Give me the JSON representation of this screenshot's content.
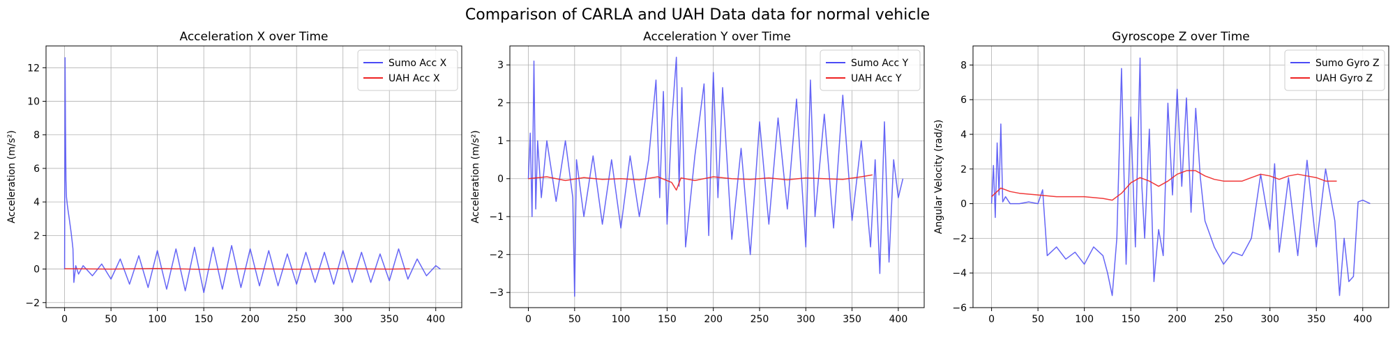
{
  "suptitle": "Comparison of CARLA and UAH Data data for normal vehicle",
  "chart_data": [
    {
      "type": "line",
      "title": "Acceleration X over Time",
      "xlabel": "",
      "ylabel": "Acceleration (m/s²)",
      "xlim": [
        -20,
        428
      ],
      "ylim": [
        -2.3,
        13.3
      ],
      "xticks": [
        0,
        50,
        100,
        150,
        200,
        250,
        300,
        350,
        400
      ],
      "yticks": [
        -2,
        0,
        2,
        4,
        6,
        8,
        10,
        12
      ],
      "grid": true,
      "legend_position": "top-right",
      "series": [
        {
          "name": "Sumo Acc X",
          "color": "#4a4af5",
          "x": [
            0,
            0.5,
            1,
            1.5,
            2,
            3,
            4,
            5,
            6,
            7,
            8,
            9,
            10,
            12,
            15,
            20,
            30,
            40,
            50,
            60,
            70,
            80,
            90,
            100,
            110,
            120,
            130,
            140,
            150,
            160,
            170,
            180,
            190,
            200,
            210,
            220,
            230,
            240,
            250,
            260,
            270,
            280,
            290,
            300,
            310,
            320,
            330,
            340,
            350,
            360,
            370,
            380,
            390,
            400,
            405
          ],
          "y": [
            0,
            12.6,
            8.5,
            5.3,
            4.3,
            3.8,
            3.4,
            3.0,
            2.6,
            2.2,
            1.7,
            1.2,
            -0.8,
            0.2,
            -0.3,
            0.2,
            -0.4,
            0.3,
            -0.6,
            0.6,
            -0.9,
            0.8,
            -1.1,
            1.1,
            -1.2,
            1.2,
            -1.3,
            1.3,
            -1.4,
            1.3,
            -1.2,
            1.4,
            -1.1,
            1.2,
            -1.0,
            1.1,
            -1.0,
            0.9,
            -0.9,
            1.0,
            -0.8,
            1.0,
            -0.9,
            1.1,
            -0.8,
            1.0,
            -0.8,
            0.9,
            -0.7,
            1.2,
            -0.6,
            0.6,
            -0.4,
            0.2,
            0
          ]
        },
        {
          "name": "UAH Acc X",
          "color": "#ee2222",
          "x": [
            0,
            50,
            100,
            150,
            200,
            250,
            300,
            350,
            372
          ],
          "y": [
            0.02,
            0.0,
            0.03,
            -0.02,
            0.02,
            -0.01,
            0.02,
            0.0,
            0.01
          ]
        }
      ]
    },
    {
      "type": "line",
      "title": "Acceleration Y over Time",
      "xlabel": "",
      "ylabel": "Acceleration (m/s²)",
      "xlim": [
        -20,
        428
      ],
      "ylim": [
        -3.4,
        3.5
      ],
      "xticks": [
        0,
        50,
        100,
        150,
        200,
        250,
        300,
        350,
        400
      ],
      "yticks": [
        -3,
        -2,
        -1,
        0,
        1,
        2,
        3
      ],
      "grid": true,
      "legend_position": "top-right",
      "series": [
        {
          "name": "Sumo Acc Y",
          "color": "#4a4af5",
          "x": [
            0,
            2,
            4,
            6,
            8,
            10,
            14,
            20,
            30,
            40,
            48,
            50,
            52,
            60,
            70,
            80,
            90,
            100,
            110,
            120,
            130,
            138,
            142,
            146,
            150,
            155,
            160,
            163,
            166,
            170,
            180,
            190,
            195,
            200,
            205,
            210,
            220,
            230,
            240,
            250,
            260,
            270,
            280,
            290,
            300,
            305,
            310,
            320,
            330,
            340,
            350,
            360,
            370,
            375,
            380,
            385,
            390,
            395,
            400,
            405
          ],
          "y": [
            0,
            1.2,
            -1.0,
            3.1,
            -0.8,
            1.0,
            -0.5,
            1.0,
            -0.6,
            1.0,
            -0.5,
            -3.1,
            0.5,
            -1.0,
            0.6,
            -1.2,
            0.5,
            -1.3,
            0.6,
            -1.0,
            0.5,
            2.6,
            -0.5,
            2.3,
            -1.2,
            1.5,
            3.2,
            -0.2,
            2.4,
            -1.8,
            0.6,
            2.5,
            -1.5,
            2.8,
            -0.5,
            2.4,
            -1.6,
            0.8,
            -2.0,
            1.5,
            -1.2,
            1.6,
            -0.8,
            2.1,
            -1.8,
            2.6,
            -1.0,
            1.7,
            -1.3,
            2.2,
            -1.1,
            1.0,
            -1.8,
            0.5,
            -2.5,
            1.5,
            -2.2,
            0.5,
            -0.5,
            0
          ]
        },
        {
          "name": "UAH Acc Y",
          "color": "#ee2222",
          "x": [
            0,
            20,
            40,
            60,
            80,
            100,
            120,
            140,
            155,
            160,
            165,
            180,
            200,
            220,
            240,
            260,
            280,
            300,
            320,
            340,
            360,
            372
          ],
          "y": [
            0.0,
            0.05,
            -0.05,
            0.03,
            -0.02,
            0.0,
            -0.03,
            0.05,
            -0.1,
            -0.3,
            0.02,
            -0.05,
            0.05,
            0.0,
            -0.02,
            0.02,
            -0.03,
            0.02,
            0.0,
            -0.02,
            0.05,
            0.1
          ]
        }
      ]
    },
    {
      "type": "line",
      "title": "Gyroscope Z over Time",
      "xlabel": "",
      "ylabel": "Angular Velocity (rad/s)",
      "xlim": [
        -20,
        428
      ],
      "ylim": [
        -6.0,
        9.1
      ],
      "xticks": [
        0,
        50,
        100,
        150,
        200,
        250,
        300,
        350,
        400
      ],
      "yticks": [
        -6,
        -4,
        -2,
        0,
        2,
        4,
        6,
        8
      ],
      "grid": true,
      "legend_position": "top-right",
      "series": [
        {
          "name": "Sumo Gyro Z",
          "color": "#4a4af5",
          "x": [
            0,
            2,
            4,
            6,
            8,
            10,
            12,
            15,
            20,
            30,
            40,
            50,
            55,
            60,
            70,
            80,
            90,
            100,
            110,
            120,
            125,
            130,
            135,
            140,
            145,
            150,
            155,
            160,
            162,
            165,
            170,
            175,
            180,
            185,
            190,
            195,
            200,
            205,
            210,
            215,
            220,
            225,
            230,
            240,
            250,
            260,
            270,
            280,
            290,
            300,
            305,
            310,
            320,
            330,
            340,
            350,
            360,
            370,
            375,
            380,
            385,
            390,
            395,
            400,
            408
          ],
          "y": [
            0,
            2.2,
            -0.8,
            3.5,
            0.5,
            4.6,
            0.1,
            0.4,
            0.0,
            0.0,
            0.1,
            0.0,
            0.8,
            -3.0,
            -2.5,
            -3.2,
            -2.8,
            -3.5,
            -2.5,
            -3.0,
            -4.0,
            -5.3,
            -2.0,
            7.8,
            -3.5,
            5.0,
            -2.5,
            8.4,
            1.0,
            -2.0,
            4.3,
            -4.5,
            -1.5,
            -3.0,
            5.8,
            0.5,
            6.6,
            1.0,
            6.1,
            -0.5,
            5.5,
            1.5,
            -1.0,
            -2.5,
            -3.5,
            -2.8,
            -3.0,
            -2.0,
            1.7,
            -1.5,
            2.3,
            -2.8,
            1.5,
            -3.0,
            2.5,
            -2.5,
            2.0,
            -1.0,
            -5.3,
            -2.0,
            -4.5,
            -4.2,
            0.1,
            0.2,
            0.0
          ]
        },
        {
          "name": "UAH Gyro Z",
          "color": "#ee2222",
          "x": [
            0,
            10,
            20,
            30,
            50,
            70,
            100,
            120,
            130,
            140,
            150,
            160,
            170,
            180,
            190,
            200,
            210,
            220,
            230,
            240,
            250,
            270,
            280,
            290,
            300,
            310,
            320,
            330,
            340,
            350,
            360,
            372
          ],
          "y": [
            0.4,
            0.9,
            0.7,
            0.6,
            0.5,
            0.4,
            0.4,
            0.3,
            0.2,
            0.6,
            1.2,
            1.5,
            1.3,
            1.0,
            1.3,
            1.7,
            1.9,
            1.9,
            1.6,
            1.4,
            1.3,
            1.3,
            1.5,
            1.7,
            1.6,
            1.4,
            1.6,
            1.7,
            1.6,
            1.5,
            1.3,
            1.3
          ]
        }
      ]
    }
  ]
}
